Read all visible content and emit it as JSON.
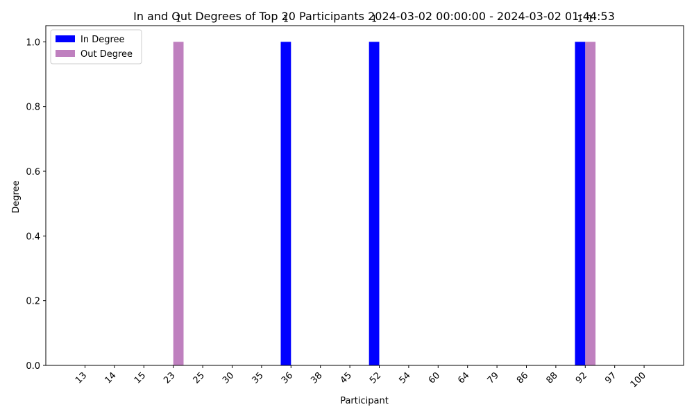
{
  "chart_data": {
    "type": "bar",
    "title": "In and Out Degrees of Top 20 Participants 2024-03-02 00:00:00 - 2024-03-02 01:44:53",
    "xlabel": "Participant",
    "ylabel": "Degree",
    "categories": [
      "13",
      "14",
      "15",
      "23",
      "25",
      "30",
      "35",
      "36",
      "38",
      "45",
      "52",
      "54",
      "60",
      "64",
      "79",
      "86",
      "88",
      "92",
      "97",
      "100"
    ],
    "series": [
      {
        "name": "In Degree",
        "color": "#0000ff",
        "values": [
          0,
          0,
          0,
          0,
          0,
          0,
          0,
          1,
          0,
          0,
          1,
          0,
          0,
          0,
          0,
          0,
          0,
          1,
          0,
          0
        ]
      },
      {
        "name": "Out Degree",
        "color": "#bf80bf",
        "values": [
          0,
          0,
          0,
          1,
          0,
          0,
          0,
          0,
          0,
          0,
          0,
          0,
          0,
          0,
          0,
          0,
          0,
          1,
          0,
          0
        ]
      }
    ],
    "ylim": [
      0,
      1.05
    ],
    "yticks": [
      "0.0",
      "0.2",
      "0.4",
      "0.6",
      "0.8",
      "1.0"
    ],
    "grid": false,
    "legend_position": "top-left"
  }
}
